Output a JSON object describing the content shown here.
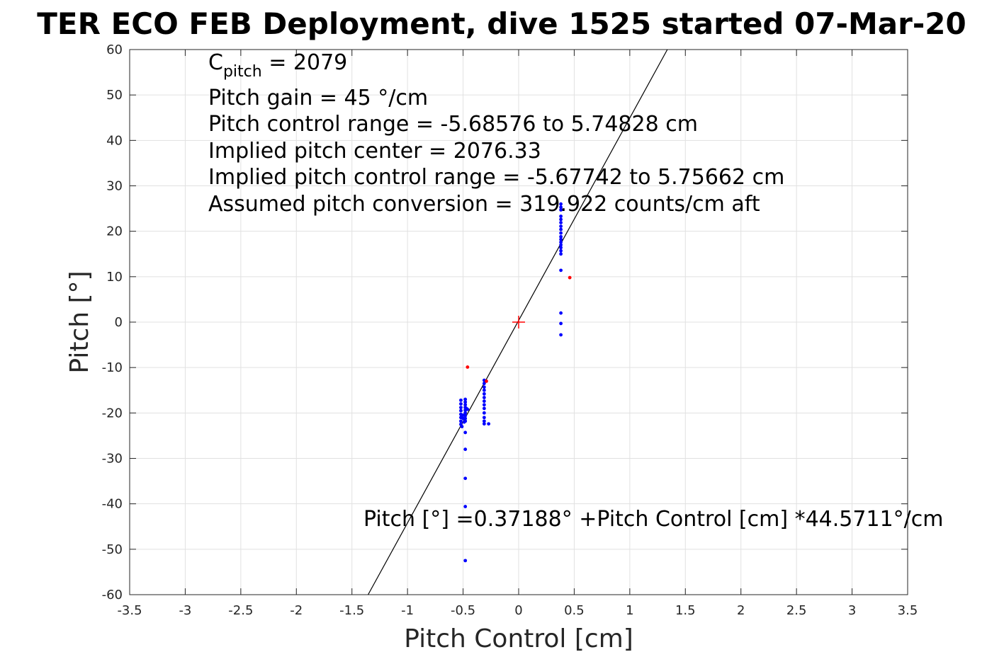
{
  "chart_data": {
    "type": "scatter",
    "title": "TER ECO FEB Deployment, dive 1525 started 07-Mar-20",
    "xlabel": "Pitch Control [cm]",
    "ylabel": "Pitch [°]",
    "xlim": [
      -3.5,
      3.5
    ],
    "ylim": [
      -60,
      60
    ],
    "xticks": [
      "-3.5",
      "-3",
      "-2.5",
      "-2",
      "-1.5",
      "-1",
      "-0.5",
      "0",
      "0.5",
      "1",
      "1.5",
      "2",
      "2.5",
      "3",
      "3.5"
    ],
    "yticks": [
      "60",
      "50",
      "40",
      "30",
      "20",
      "10",
      "0",
      "-10",
      "-20",
      "-30",
      "-40",
      "-50",
      "-60"
    ],
    "grid": true,
    "annotation_lines": {
      "cpitch_main": "C",
      "cpitch_sub": "pitch",
      "cpitch_value": " = 2079",
      "line2": "Pitch gain = 45 °/cm",
      "line3": "Pitch control range = -5.68576 to 5.74828 cm",
      "line4": "Implied pitch center = 2076.33",
      "line5": "Implied pitch control range = -5.67742 to 5.75662 cm",
      "line6": "Assumed pitch conversion = 319.922 counts/cm aft"
    },
    "fit_label": "Pitch [°] =0.37188° +Pitch Control [cm] *44.5711°/cm",
    "fit": {
      "intercept": 0.37188,
      "slope": 44.5711
    },
    "center_marker": {
      "x": 0,
      "y": 0,
      "color": "#ff0000"
    },
    "series": [
      {
        "color": "#0000ff",
        "points": [
          [
            -0.52,
            -17.2
          ],
          [
            -0.52,
            -18.0
          ],
          [
            -0.52,
            -18.8
          ],
          [
            -0.52,
            -19.5
          ],
          [
            -0.52,
            -20.3
          ],
          [
            -0.52,
            -21.0
          ],
          [
            -0.52,
            -21.8
          ],
          [
            -0.52,
            -22.5
          ],
          [
            -0.51,
            -23.0
          ],
          [
            -0.5,
            -20.5
          ],
          [
            -0.5,
            -21.2
          ],
          [
            -0.49,
            -22.0
          ],
          [
            -0.48,
            -17.0
          ],
          [
            -0.48,
            -17.6
          ],
          [
            -0.48,
            -18.2
          ],
          [
            -0.48,
            -18.8
          ],
          [
            -0.48,
            -19.4
          ],
          [
            -0.48,
            -20.0
          ],
          [
            -0.48,
            -20.6
          ],
          [
            -0.48,
            -21.2
          ],
          [
            -0.48,
            -21.8
          ],
          [
            -0.47,
            -19.0
          ],
          [
            -0.46,
            -19.2
          ],
          [
            -0.48,
            -24.3
          ],
          [
            -0.48,
            -28.0
          ],
          [
            -0.48,
            -34.4
          ],
          [
            -0.48,
            -40.6
          ],
          [
            -0.48,
            -52.5
          ],
          [
            -0.31,
            -12.8
          ],
          [
            -0.31,
            -13.5
          ],
          [
            -0.31,
            -14.3
          ],
          [
            -0.31,
            -15.0
          ],
          [
            -0.31,
            -15.8
          ],
          [
            -0.31,
            -16.6
          ],
          [
            -0.31,
            -17.4
          ],
          [
            -0.31,
            -18.2
          ],
          [
            -0.31,
            -19.0
          ],
          [
            -0.31,
            -20.0
          ],
          [
            -0.31,
            -21.0
          ],
          [
            -0.31,
            -21.8
          ],
          [
            -0.31,
            -22.4
          ],
          [
            -0.27,
            -22.4
          ],
          [
            0.38,
            15.0
          ],
          [
            0.38,
            15.7
          ],
          [
            0.38,
            16.4
          ],
          [
            0.38,
            17.0
          ],
          [
            0.38,
            17.6
          ],
          [
            0.38,
            18.2
          ],
          [
            0.38,
            18.8
          ],
          [
            0.38,
            19.6
          ],
          [
            0.38,
            20.4
          ],
          [
            0.38,
            21.1
          ],
          [
            0.38,
            21.9
          ],
          [
            0.38,
            22.6
          ],
          [
            0.38,
            23.3
          ],
          [
            0.38,
            24.7
          ],
          [
            0.38,
            25.3
          ],
          [
            0.38,
            26.0
          ],
          [
            0.38,
            11.4
          ],
          [
            0.38,
            2.0
          ],
          [
            0.38,
            -0.3
          ],
          [
            0.38,
            -2.8
          ]
        ]
      },
      {
        "color": "#ff0000",
        "points": [
          [
            -0.46,
            -9.9
          ],
          [
            -0.29,
            -13.0
          ],
          [
            0.46,
            9.8
          ]
        ]
      }
    ]
  }
}
